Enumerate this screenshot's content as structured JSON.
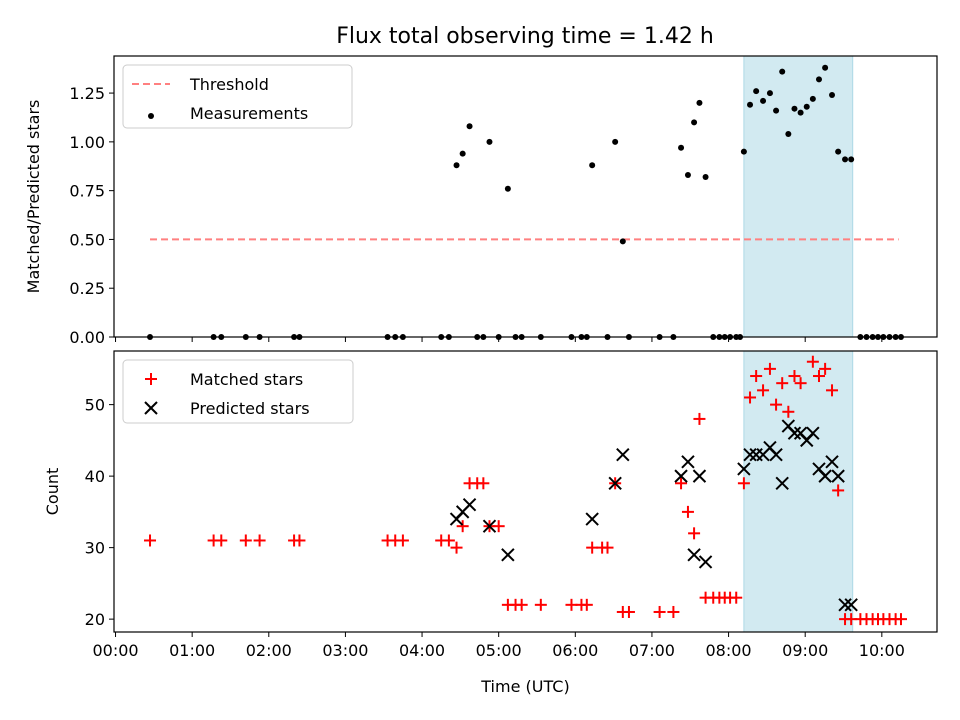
{
  "title": "Flux total observing time = 1.42 h",
  "colors": {
    "threshold": "#ff8080",
    "measurements": "#000000",
    "matched": "#ff0000",
    "predicted": "#000000",
    "span": "#add8e6"
  },
  "chart_data": [
    {
      "type": "scatter",
      "title": "Flux total observing time = 1.42 h",
      "xlabel": "",
      "ylabel": "Matched/Predicted stars",
      "xlim_hours": [
        -0.02,
        10.72
      ],
      "ylim": [
        0,
        1.44
      ],
      "yticks": [
        "0.00",
        "0.25",
        "0.50",
        "0.75",
        "1.00",
        "1.25"
      ],
      "legend": {
        "position": "upper left",
        "entries": [
          "Threshold",
          "Measurements"
        ]
      },
      "highlight_span_hours": [
        8.2,
        9.62
      ],
      "threshold": {
        "name": "Threshold",
        "value": 0.5,
        "x_start_hours": 0.45,
        "x_end_hours": 10.22
      },
      "series": [
        {
          "name": "Measurements",
          "points": [
            [
              0.45,
              0
            ],
            [
              1.28,
              0
            ],
            [
              1.38,
              0
            ],
            [
              1.7,
              0
            ],
            [
              1.88,
              0
            ],
            [
              2.33,
              0
            ],
            [
              2.4,
              0
            ],
            [
              3.55,
              0
            ],
            [
              3.65,
              0
            ],
            [
              3.75,
              0
            ],
            [
              4.25,
              0
            ],
            [
              4.35,
              0
            ],
            [
              4.45,
              0.88
            ],
            [
              4.53,
              0.94
            ],
            [
              4.62,
              1.08
            ],
            [
              4.72,
              0
            ],
            [
              4.8,
              0
            ],
            [
              4.88,
              1.0
            ],
            [
              5.0,
              0
            ],
            [
              5.12,
              0.76
            ],
            [
              5.22,
              0
            ],
            [
              5.3,
              0
            ],
            [
              5.55,
              0
            ],
            [
              5.95,
              0
            ],
            [
              6.08,
              0
            ],
            [
              6.15,
              0
            ],
            [
              6.22,
              0.88
            ],
            [
              6.42,
              0
            ],
            [
              6.52,
              1.0
            ],
            [
              6.62,
              0.49
            ],
            [
              6.7,
              0
            ],
            [
              7.1,
              0
            ],
            [
              7.28,
              0
            ],
            [
              7.38,
              0.97
            ],
            [
              7.47,
              0.83
            ],
            [
              7.55,
              1.1
            ],
            [
              7.62,
              1.2
            ],
            [
              7.7,
              0.82
            ],
            [
              7.8,
              0
            ],
            [
              7.88,
              0
            ],
            [
              7.95,
              0
            ],
            [
              8.02,
              0
            ],
            [
              8.1,
              0
            ],
            [
              8.15,
              0
            ],
            [
              8.2,
              0.95
            ],
            [
              8.28,
              1.19
            ],
            [
              8.36,
              1.26
            ],
            [
              8.45,
              1.21
            ],
            [
              8.54,
              1.25
            ],
            [
              8.62,
              1.16
            ],
            [
              8.7,
              1.36
            ],
            [
              8.78,
              1.04
            ],
            [
              8.86,
              1.17
            ],
            [
              8.94,
              1.15
            ],
            [
              9.02,
              1.18
            ],
            [
              9.1,
              1.22
            ],
            [
              9.18,
              1.32
            ],
            [
              9.26,
              1.38
            ],
            [
              9.35,
              1.24
            ],
            [
              9.43,
              0.95
            ],
            [
              9.52,
              0.91
            ],
            [
              9.6,
              0.91
            ],
            [
              9.72,
              0
            ],
            [
              9.8,
              0
            ],
            [
              9.88,
              0
            ],
            [
              9.95,
              0
            ],
            [
              10.02,
              0
            ],
            [
              10.1,
              0
            ],
            [
              10.18,
              0
            ],
            [
              10.25,
              0
            ]
          ]
        }
      ]
    },
    {
      "type": "scatter",
      "xlabel": "Time (UTC)",
      "ylabel": "Count",
      "xlim_hours": [
        -0.02,
        10.72
      ],
      "ylim": [
        18.2,
        57.5
      ],
      "yticks": [
        "20",
        "30",
        "40",
        "50"
      ],
      "xticks": [
        "00:00",
        "01:00",
        "02:00",
        "03:00",
        "04:00",
        "05:00",
        "06:00",
        "07:00",
        "08:00",
        "09:00",
        "10:00"
      ],
      "legend": {
        "position": "upper left",
        "entries": [
          "Matched stars",
          "Predicted stars"
        ]
      },
      "highlight_span_hours": [
        8.2,
        9.62
      ],
      "series": [
        {
          "name": "Matched stars",
          "marker": "plus",
          "points": [
            [
              0.45,
              31
            ],
            [
              1.28,
              31
            ],
            [
              1.38,
              31
            ],
            [
              1.7,
              31
            ],
            [
              1.88,
              31
            ],
            [
              2.33,
              31
            ],
            [
              2.4,
              31
            ],
            [
              3.55,
              31
            ],
            [
              3.65,
              31
            ],
            [
              3.75,
              31
            ],
            [
              4.25,
              31
            ],
            [
              4.35,
              31
            ],
            [
              4.45,
              30
            ],
            [
              4.53,
              33
            ],
            [
              4.62,
              39
            ],
            [
              4.72,
              39
            ],
            [
              4.8,
              39
            ],
            [
              4.88,
              33
            ],
            [
              5.0,
              33
            ],
            [
              5.12,
              22
            ],
            [
              5.22,
              22
            ],
            [
              5.3,
              22
            ],
            [
              5.55,
              22
            ],
            [
              5.95,
              22
            ],
            [
              6.08,
              22
            ],
            [
              6.15,
              22
            ],
            [
              6.22,
              30
            ],
            [
              6.35,
              30
            ],
            [
              6.42,
              30
            ],
            [
              6.52,
              39
            ],
            [
              6.62,
              21
            ],
            [
              6.7,
              21
            ],
            [
              7.1,
              21
            ],
            [
              7.28,
              21
            ],
            [
              7.38,
              39
            ],
            [
              7.47,
              35
            ],
            [
              7.55,
              32
            ],
            [
              7.62,
              48
            ],
            [
              7.7,
              23
            ],
            [
              7.8,
              23
            ],
            [
              7.88,
              23
            ],
            [
              7.95,
              23
            ],
            [
              8.02,
              23
            ],
            [
              8.1,
              23
            ],
            [
              8.2,
              39
            ],
            [
              8.28,
              51
            ],
            [
              8.36,
              54
            ],
            [
              8.45,
              52
            ],
            [
              8.54,
              55
            ],
            [
              8.62,
              50
            ],
            [
              8.7,
              53
            ],
            [
              8.78,
              49
            ],
            [
              8.86,
              54
            ],
            [
              8.94,
              53
            ],
            [
              9.1,
              56
            ],
            [
              9.18,
              54
            ],
            [
              9.26,
              55
            ],
            [
              9.35,
              52
            ],
            [
              9.43,
              38
            ],
            [
              9.52,
              20
            ],
            [
              9.6,
              20
            ],
            [
              9.72,
              20
            ],
            [
              9.8,
              20
            ],
            [
              9.88,
              20
            ],
            [
              9.95,
              20
            ],
            [
              10.02,
              20
            ],
            [
              10.1,
              20
            ],
            [
              10.18,
              20
            ],
            [
              10.25,
              20
            ]
          ]
        },
        {
          "name": "Predicted stars",
          "marker": "x",
          "points": [
            [
              4.45,
              34
            ],
            [
              4.53,
              35
            ],
            [
              4.62,
              36
            ],
            [
              4.88,
              33
            ],
            [
              5.12,
              29
            ],
            [
              6.22,
              34
            ],
            [
              6.52,
              39
            ],
            [
              6.62,
              43
            ],
            [
              7.38,
              40
            ],
            [
              7.47,
              42
            ],
            [
              7.55,
              29
            ],
            [
              7.62,
              40
            ],
            [
              7.7,
              28
            ],
            [
              8.2,
              41
            ],
            [
              8.28,
              43
            ],
            [
              8.36,
              43
            ],
            [
              8.45,
              43
            ],
            [
              8.54,
              44
            ],
            [
              8.62,
              43
            ],
            [
              8.7,
              39
            ],
            [
              8.78,
              47
            ],
            [
              8.86,
              46
            ],
            [
              8.94,
              46
            ],
            [
              9.02,
              45
            ],
            [
              9.1,
              46
            ],
            [
              9.18,
              41
            ],
            [
              9.26,
              40
            ],
            [
              9.35,
              42
            ],
            [
              9.43,
              40
            ],
            [
              9.52,
              22
            ],
            [
              9.6,
              22
            ]
          ]
        }
      ]
    }
  ]
}
